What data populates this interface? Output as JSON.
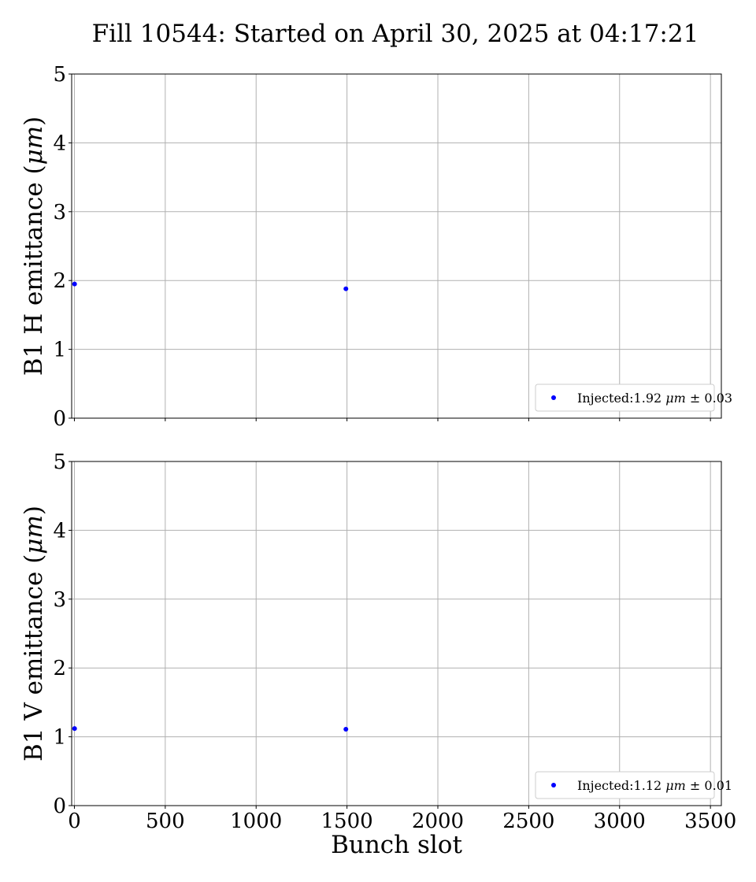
{
  "figure": {
    "title": "Fill 10544: Started on April 30, 2025 at 04:17:21"
  },
  "chart_data": [
    {
      "type": "scatter",
      "panel": "top",
      "ylabel": "B1 H emittance (μm)",
      "xlabel": "",
      "xlim": [
        -15,
        3560
      ],
      "ylim": [
        0,
        5
      ],
      "xticks": [
        0,
        500,
        1000,
        1500,
        2000,
        2500,
        3000,
        3500
      ],
      "show_xtick_labels": false,
      "yticks": [
        0,
        1,
        2,
        3,
        4,
        5
      ],
      "grid": true,
      "legend_position": "lower-right",
      "point_color": "#0000ff",
      "series": [
        {
          "name": "Injected:1.92 μm ± 0.03",
          "x": [
            1,
            1494
          ],
          "y": [
            1.95,
            1.88
          ]
        }
      ]
    },
    {
      "type": "scatter",
      "panel": "bottom",
      "ylabel": "B1 V emittance (μm)",
      "xlabel": "Bunch slot",
      "xlim": [
        -15,
        3560
      ],
      "ylim": [
        0,
        5
      ],
      "xticks": [
        0,
        500,
        1000,
        1500,
        2000,
        2500,
        3000,
        3500
      ],
      "show_xtick_labels": true,
      "yticks": [
        0,
        1,
        2,
        3,
        4,
        5
      ],
      "grid": true,
      "legend_position": "lower-right",
      "point_color": "#0000ff",
      "series": [
        {
          "name": "Injected:1.12 μm ± 0.01",
          "x": [
            1,
            1494
          ],
          "y": [
            1.12,
            1.11
          ]
        }
      ]
    }
  ]
}
